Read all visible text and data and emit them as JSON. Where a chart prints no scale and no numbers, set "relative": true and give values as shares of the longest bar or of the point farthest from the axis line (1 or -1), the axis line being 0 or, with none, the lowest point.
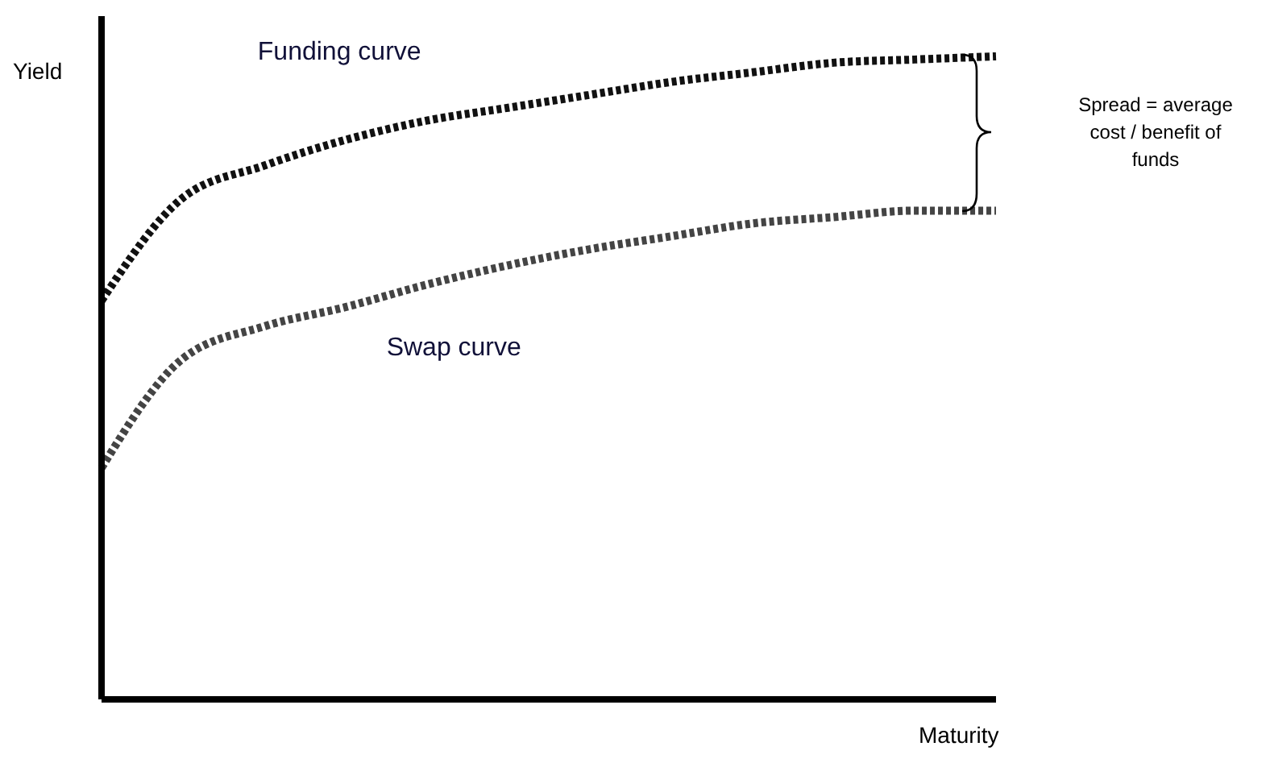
{
  "chart_data": {
    "type": "line",
    "relative": true,
    "xlabel": "Maturity",
    "ylabel": "Yield",
    "categories": [
      null,
      null,
      null,
      null,
      null,
      null,
      null,
      null,
      null,
      null,
      null,
      null
    ],
    "legend": false,
    "line_style": "dashed",
    "annotations": [
      "Spread = average cost / benefit of funds"
    ],
    "series": [
      {
        "name": "Funding curve",
        "color": "#111111",
        "values": [
          0.62,
          0.78,
          0.83,
          0.87,
          0.9,
          0.92,
          0.94,
          0.96,
          0.975,
          0.99,
          0.995,
          1
        ]
      },
      {
        "name": "Swap curve",
        "color": "#444444",
        "values": [
          0.36,
          0.53,
          0.58,
          0.61,
          0.645,
          0.675,
          0.7,
          0.72,
          0.74,
          0.75,
          0.76,
          0.76
        ]
      }
    ]
  }
}
